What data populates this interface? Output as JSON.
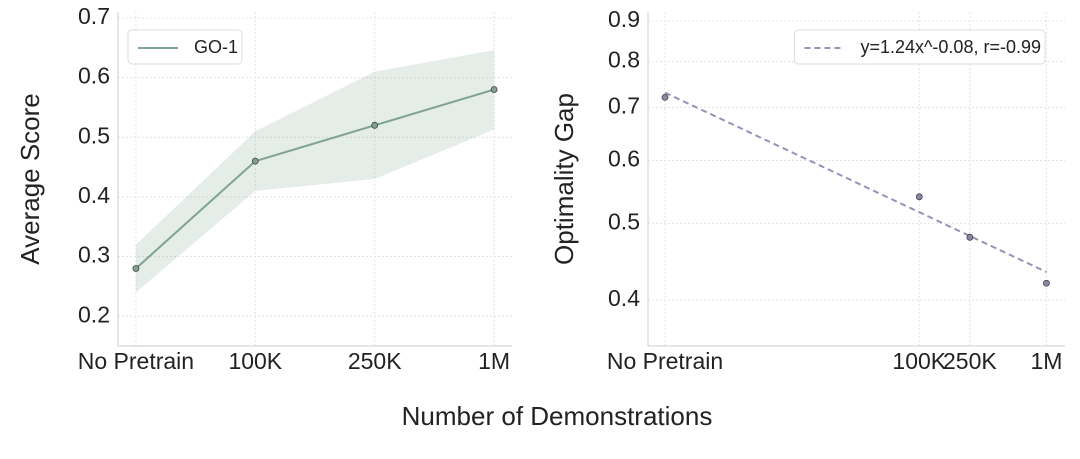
{
  "xlabel": "Number of Demonstrations",
  "chart_data": [
    {
      "type": "line",
      "ylabel": "Average Score",
      "categories": [
        "No Pretrain",
        "100K",
        "250K",
        "1M"
      ],
      "ylim": [
        0.15,
        0.71
      ],
      "yticks": [
        0.2,
        0.3,
        0.4,
        0.5,
        0.6,
        0.7
      ],
      "grid": true,
      "legend": "upper left",
      "series": [
        {
          "name": "GO-1",
          "color": "#7fa38f",
          "values": [
            0.28,
            0.46,
            0.52,
            0.58
          ],
          "lower": [
            0.24,
            0.41,
            0.43,
            0.513
          ],
          "upper": [
            0.32,
            0.51,
            0.61,
            0.646
          ]
        }
      ]
    },
    {
      "type": "scatter",
      "ylabel": "Optimality Gap",
      "xlog": true,
      "ylog": true,
      "xlim": [
        735,
        1400000
      ],
      "ylim": [
        0.35,
        0.924
      ],
      "xticks": [
        {
          "value": 1000,
          "label": "No Pretrain"
        },
        {
          "value": 100000,
          "label": "100K"
        },
        {
          "value": 250000,
          "label": "250K"
        },
        {
          "value": 1000000,
          "label": "1M"
        }
      ],
      "yticks": [
        0.4,
        0.5,
        0.6,
        0.7,
        0.8,
        0.9
      ],
      "grid": true,
      "legend": "upper right",
      "series": [
        {
          "name": "y=1.24x^-0.08, r=-0.99",
          "style": "dashed",
          "color": "#9a90b8",
          "x": [
            1000,
            1000000
          ],
          "values": [
            0.731,
            0.434
          ]
        },
        {
          "style": "points",
          "color": "#8a86a8",
          "x": [
            1000,
            100000,
            250000,
            1000000
          ],
          "values": [
            0.721,
            0.54,
            0.48,
            0.42
          ]
        }
      ]
    }
  ]
}
